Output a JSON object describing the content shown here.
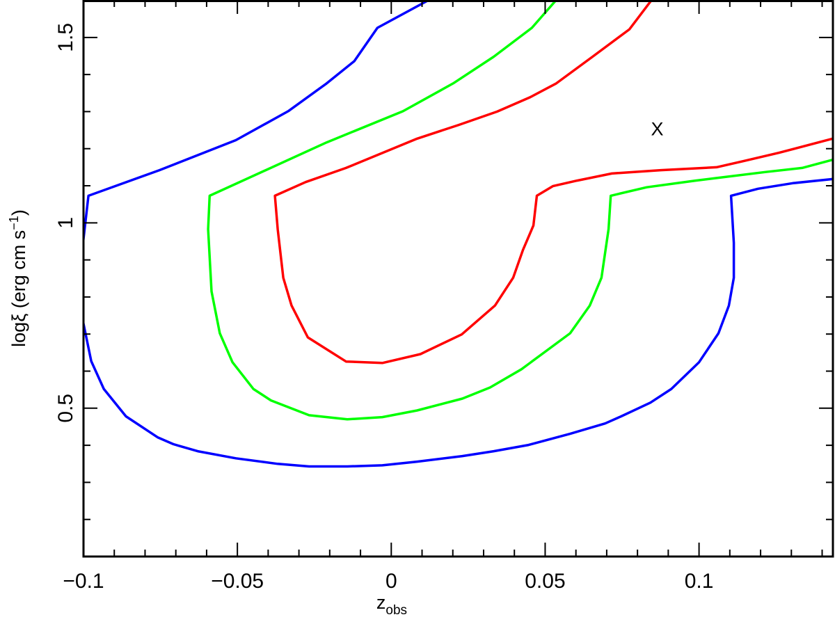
{
  "chart_data": {
    "type": "line",
    "x_label": {
      "main": "z",
      "sub": "obs"
    },
    "y_label": {
      "main": "logξ (erg cm s",
      "sup": "−1",
      "end": ")"
    },
    "annotations": [
      {
        "text": "X",
        "x": 0.0864,
        "y": 1.255
      }
    ],
    "xlim": [
      -0.1,
      0.1435
    ],
    "ylim": [
      0.1,
      1.601
    ],
    "xticks": [
      {
        "value": -0.1,
        "label": "−0.1"
      },
      {
        "value": -0.05,
        "label": "−0.05"
      },
      0,
      0.05,
      0.1
    ],
    "yticks": [
      0.5,
      1,
      1.5
    ],
    "xminor_ticks": [
      -0.09,
      -0.08,
      -0.07,
      -0.06,
      -0.04,
      -0.03,
      -0.02,
      -0.01,
      0.01,
      0.02,
      0.03,
      0.04,
      0.06,
      0.07,
      0.08,
      0.09,
      0.11,
      0.12,
      0.13,
      0.14
    ],
    "yminor_ticks": [
      0.2,
      0.3,
      0.4,
      0.6,
      0.7,
      0.8,
      0.9,
      1.1,
      1.2,
      1.3,
      1.4,
      1.6
    ],
    "series": [
      {
        "color": "#0000ff",
        "x": [
          0.0122,
          -0.0045,
          -0.012,
          -0.021,
          -0.0335,
          -0.0505,
          -0.0753,
          -0.0984,
          -0.1002,
          -0.1002,
          -0.0975,
          -0.0934,
          -0.0862,
          -0.0758,
          -0.0708,
          -0.0629,
          -0.0505,
          -0.0369,
          -0.0267,
          -0.0143,
          -0.0029,
          0.0084,
          0.0231,
          0.0333,
          0.0446,
          0.0581,
          0.0695,
          0.0747,
          0.0842,
          0.091,
          0.1,
          0.1063,
          0.1097,
          0.1113,
          0.1113,
          0.1104,
          0.1192,
          0.1305,
          0.1434
        ],
        "y": [
          1.601,
          1.526,
          1.436,
          1.376,
          1.301,
          1.223,
          1.142,
          1.073,
          0.942,
          0.736,
          0.627,
          0.552,
          0.478,
          0.421,
          0.403,
          0.384,
          0.365,
          0.35,
          0.343,
          0.343,
          0.346,
          0.356,
          0.371,
          0.384,
          0.401,
          0.431,
          0.459,
          0.478,
          0.515,
          0.552,
          0.624,
          0.702,
          0.777,
          0.852,
          0.946,
          1.073,
          1.092,
          1.107,
          1.118
        ]
      },
      {
        "color": "#00ff00",
        "x": [
          0.0536,
          0.0457,
          0.0333,
          0.0201,
          0.0038,
          -0.021,
          -0.059,
          -0.0595,
          -0.0584,
          -0.0557,
          -0.0516,
          -0.0448,
          -0.0391,
          -0.0267,
          -0.0143,
          -0.0029,
          0.0084,
          0.0231,
          0.0321,
          0.0423,
          0.0581,
          0.0645,
          0.0683,
          0.0706,
          0.0713,
          0.083,
          0.0989,
          0.1215,
          0.1335,
          0.1434
        ],
        "y": [
          1.601,
          1.526,
          1.448,
          1.376,
          1.301,
          1.217,
          1.073,
          0.983,
          0.815,
          0.702,
          0.624,
          0.552,
          0.521,
          0.481,
          0.47,
          0.476,
          0.494,
          0.526,
          0.556,
          0.605,
          0.702,
          0.777,
          0.852,
          0.983,
          1.073,
          1.096,
          1.114,
          1.137,
          1.148,
          1.17
        ]
      },
      {
        "color": "#ff0000",
        "x": [
          0.0846,
          0.0774,
          0.0654,
          0.0536,
          0.0452,
          0.0344,
          0.0219,
          0.0084,
          -0.0147,
          -0.0278,
          -0.0378,
          -0.0369,
          -0.0351,
          -0.0324,
          -0.0271,
          -0.0147,
          -0.0029,
          0.0095,
          0.0229,
          0.0337,
          0.0396,
          0.0428,
          0.0462,
          0.0473,
          0.0525,
          0.0604,
          0.0717,
          0.0876,
          0.1057,
          0.1147,
          0.126,
          0.1434
        ],
        "y": [
          1.601,
          1.522,
          1.448,
          1.376,
          1.339,
          1.3,
          1.264,
          1.227,
          1.148,
          1.11,
          1.073,
          0.983,
          0.852,
          0.777,
          0.691,
          0.626,
          0.622,
          0.646,
          0.699,
          0.777,
          0.852,
          0.927,
          0.993,
          1.073,
          1.099,
          1.114,
          1.133,
          1.142,
          1.15,
          1.167,
          1.189,
          1.227
        ]
      }
    ]
  }
}
